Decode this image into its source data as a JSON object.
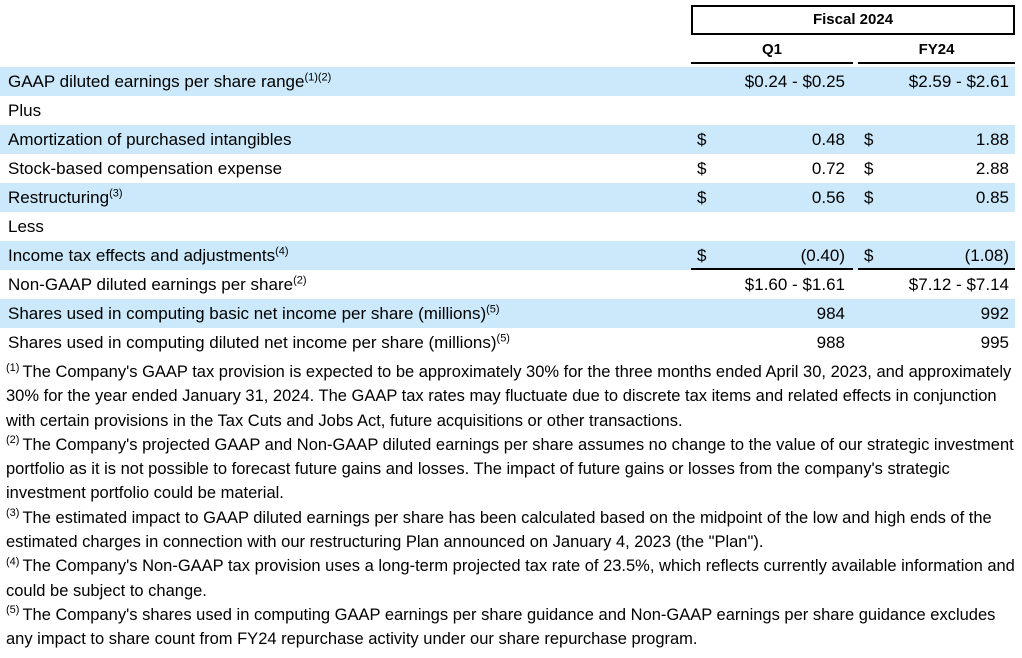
{
  "colors": {
    "row_highlight": "#cbe9fa",
    "border": "#000000"
  },
  "currency_symbol": "$",
  "table": {
    "header_group": "Fiscal 2024",
    "columns": {
      "q1": "Q1",
      "fy24": "FY24"
    },
    "rows": [
      {
        "label": "GAAP diluted earnings per share range",
        "sup": "(1)(2)",
        "q1": "$0.24 - $0.25",
        "fy24": "$2.59 - $2.61",
        "type": "range",
        "shaded": true
      },
      {
        "label": "Plus",
        "sup": "",
        "q1": "",
        "fy24": "",
        "type": "section",
        "shaded": false
      },
      {
        "label": "Amortization of purchased intangibles",
        "sup": "",
        "q1": "0.48",
        "fy24": "1.88",
        "type": "money",
        "shaded": true
      },
      {
        "label": "Stock-based compensation expense",
        "sup": "",
        "q1": "0.72",
        "fy24": "2.88",
        "type": "money",
        "shaded": false
      },
      {
        "label": "Restructuring",
        "sup": "(3)",
        "q1": "0.56",
        "fy24": "0.85",
        "type": "money",
        "shaded": true
      },
      {
        "label": "Less",
        "sup": "",
        "q1": "",
        "fy24": "",
        "type": "section",
        "shaded": false
      },
      {
        "label": "Income tax effects and adjustments",
        "sup": "(4)",
        "q1": "(0.40)",
        "fy24": "(1.08)",
        "type": "money",
        "underline": true,
        "shaded": true
      },
      {
        "label": "Non-GAAP diluted earnings per share",
        "sup": "(2)",
        "q1": "$1.60 - $1.61",
        "fy24": "$7.12 - $7.14",
        "type": "range",
        "shaded": false
      },
      {
        "label": "Shares used in computing basic net income per share (millions)",
        "sup": "(5)",
        "q1": "984",
        "fy24": "992",
        "type": "plain",
        "shaded": true
      },
      {
        "label": "Shares used in computing diluted net income per share (millions)",
        "sup": "(5)",
        "q1": "988",
        "fy24": "995",
        "type": "plain",
        "shaded": false
      }
    ]
  },
  "footnotes": [
    {
      "marker": "(1)",
      "text": "The Company's GAAP tax provision is expected to be approximately 30% for the three months ended April 30, 2023, and approximately 30% for the year ended January 31, 2024. The GAAP tax rates may fluctuate due to discrete tax items and related effects in conjunction with certain provisions in the Tax Cuts and Jobs Act, future acquisitions or other transactions."
    },
    {
      "marker": "(2)",
      "text": "The Company's projected GAAP and Non-GAAP diluted earnings per share assumes no change to the value of our strategic investment portfolio as it is not possible to forecast future gains and losses. The impact of future gains or losses from the company's strategic investment portfolio could be material."
    },
    {
      "marker": "(3)",
      "text": "The estimated impact to GAAP diluted earnings per share has been calculated based on the midpoint of the low and high ends of the estimated charges in connection with our restructuring Plan announced on January 4, 2023 (the \"Plan\")."
    },
    {
      "marker": "(4)",
      "text": "The Company's Non-GAAP tax provision uses a long-term projected tax rate of 23.5%, which reflects currently available information and could be subject to change."
    },
    {
      "marker": "(5)",
      "text": "The Company's shares used in computing GAAP earnings per share guidance and Non-GAAP earnings per share guidance excludes any impact to share count from FY24 repurchase activity under our share repurchase program."
    }
  ]
}
